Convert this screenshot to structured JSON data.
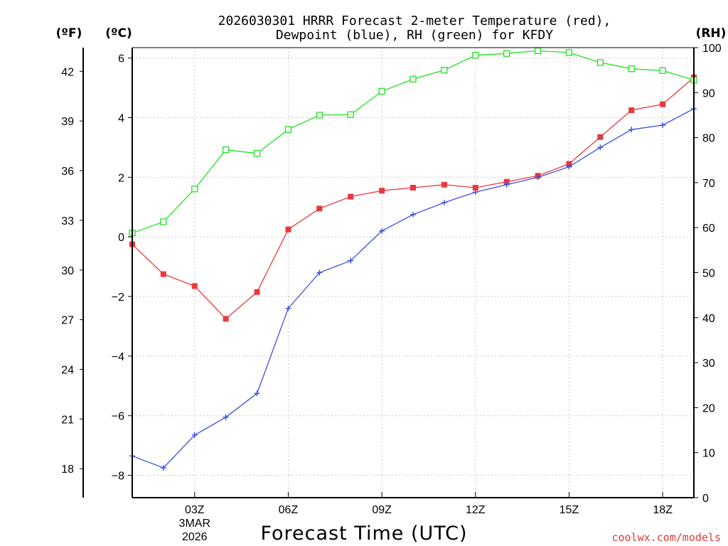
{
  "chart_data": {
    "type": "line",
    "title_lines": [
      "2026030301 HRRR Forecast 2-meter Temperature (red),",
      "Dewpoint (blue), RH (green) for KFDY"
    ],
    "xlabel": "Forecast Time (UTC)",
    "x_ticks": [
      "03Z",
      "06Z",
      "09Z",
      "12Z",
      "15Z",
      "18Z"
    ],
    "x_date_lines": [
      "3MAR",
      "2026"
    ],
    "x_range_hours": [
      1,
      19
    ],
    "axes": {
      "celsius": {
        "unit_label": "(ºC)",
        "range": [
          -8.75,
          6.35
        ],
        "ticks": [
          "6",
          "4",
          "2",
          "0",
          "−2",
          "−4",
          "−6",
          "−8"
        ]
      },
      "fahrenheit": {
        "unit_label": "(ºF)",
        "ticks": [
          "42",
          "39",
          "36",
          "33",
          "30",
          "27",
          "24",
          "21",
          "18"
        ]
      },
      "rh": {
        "unit_label": "(RH)",
        "range": [
          0,
          100
        ],
        "ticks": [
          "100",
          "90",
          "80",
          "70",
          "60",
          "50",
          "40",
          "30",
          "20",
          "10",
          "0"
        ]
      }
    },
    "series": [
      {
        "name": "Temperature",
        "color": "#e8393d",
        "marker": "filled-square",
        "axis": "celsius",
        "x": [
          1,
          2,
          3,
          4,
          5,
          6,
          7,
          8,
          9,
          10,
          11,
          12,
          13,
          14,
          15,
          16,
          17,
          18,
          19
        ],
        "values": [
          -0.25,
          -1.25,
          -1.65,
          -2.75,
          -1.85,
          0.25,
          0.95,
          1.35,
          1.55,
          1.65,
          1.75,
          1.65,
          1.85,
          2.05,
          2.45,
          3.35,
          4.25,
          4.45,
          5.35
        ]
      },
      {
        "name": "Dewpoint",
        "color": "#3a4fe0",
        "marker": "plus",
        "axis": "celsius",
        "x": [
          1,
          2,
          3,
          4,
          5,
          6,
          7,
          8,
          9,
          10,
          11,
          12,
          13,
          14,
          15,
          16,
          17,
          18,
          19
        ],
        "values": [
          -7.35,
          -7.75,
          -6.65,
          -6.05,
          -5.25,
          -2.4,
          -1.2,
          -0.8,
          0.2,
          0.75,
          1.15,
          1.5,
          1.75,
          2.0,
          2.35,
          3.0,
          3.6,
          3.75,
          4.3
        ]
      },
      {
        "name": "RH",
        "color": "#22e022",
        "marker": "open-square",
        "axis": "rh",
        "x": [
          1,
          2,
          3,
          4,
          5,
          6,
          7,
          8,
          9,
          10,
          11,
          12,
          13,
          14,
          15,
          16,
          17,
          18,
          19
        ],
        "values": [
          58.8,
          61.3,
          68.6,
          77.3,
          76.5,
          81.8,
          85.0,
          85.1,
          90.3,
          93.0,
          95.0,
          98.3,
          98.7,
          99.3,
          98.9,
          96.7,
          95.3,
          94.9,
          92.8
        ]
      }
    ]
  },
  "footer": {
    "credit": "coolwx.com/models"
  }
}
